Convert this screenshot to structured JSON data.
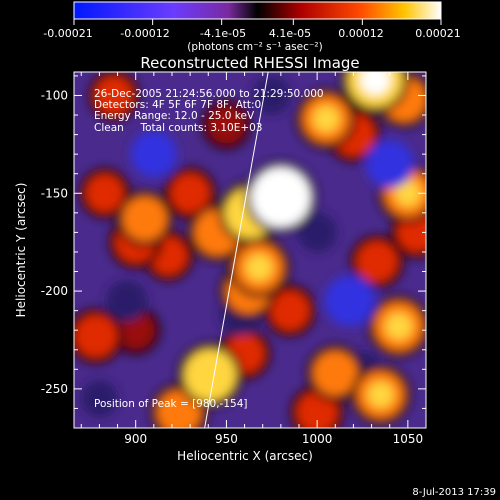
{
  "colorbar": {
    "ticks": [
      "-0.00021",
      "-0.00012",
      "-4.1e-05",
      "4.1e-05",
      "0.00012",
      "0.00021"
    ],
    "tick_values": [
      -0.00021,
      -0.00012,
      -4.1e-05,
      4.1e-05,
      0.00012,
      0.00021
    ],
    "range": [
      -0.00021,
      0.00021
    ],
    "unit_label": "(photons cm⁻² s⁻¹ asec⁻²)"
  },
  "chart_data": {
    "type": "heatmap",
    "title": "Reconstructed RHESSI Image",
    "xlabel": "Heliocentric X (arcsec)",
    "ylabel": "Heliocentric Y (arcsec)",
    "xlim": [
      866,
      1060
    ],
    "ylim": [
      -270,
      -88
    ],
    "x_ticks": [
      900,
      950,
      1000,
      1050
    ],
    "y_ticks": [
      -100,
      -150,
      -200,
      -250
    ],
    "colormap": "RHESSI blue-purple-red-yellow-white",
    "info_lines": [
      "26-Dec-2005 21:24:56.000 to 21:29:50.000",
      "Detectors: 4F 5F 6F 7F 8F, Att:0",
      "Energy Range: 12.0 - 25.0 keV",
      "Clean     Total counts: 3.10E+03"
    ],
    "peak_label": "Position of Peak = [980,-154]",
    "peak": [
      980,
      -154
    ],
    "limb_line": [
      [
        938,
        -270
      ],
      [
        973,
        -88
      ]
    ],
    "blobs": [
      {
        "x": 980,
        "y": -152,
        "value": 0.00021
      },
      {
        "x": 963,
        "y": -160,
        "value": 0.00015
      },
      {
        "x": 968,
        "y": -188,
        "value": 0.00014
      },
      {
        "x": 962,
        "y": -200,
        "value": 0.00011
      },
      {
        "x": 945,
        "y": -170,
        "value": 0.00012
      },
      {
        "x": 930,
        "y": -150,
        "value": 8e-05
      },
      {
        "x": 905,
        "y": -163,
        "value": 0.00011
      },
      {
        "x": 900,
        "y": -175,
        "value": 9e-05
      },
      {
        "x": 918,
        "y": -182,
        "value": 7e-05
      },
      {
        "x": 883,
        "y": -150,
        "value": 7e-05
      },
      {
        "x": 878,
        "y": -223,
        "value": 0.0001
      },
      {
        "x": 900,
        "y": -220,
        "value": 6e-05
      },
      {
        "x": 941,
        "y": -243,
        "value": 0.00016
      },
      {
        "x": 924,
        "y": -262,
        "value": 0.00011
      },
      {
        "x": 960,
        "y": -232,
        "value": 8e-05
      },
      {
        "x": 1032,
        "y": -92,
        "value": 0.00018
      },
      {
        "x": 1048,
        "y": -102,
        "value": 0.00011
      },
      {
        "x": 1005,
        "y": -112,
        "value": 0.00013
      },
      {
        "x": 1020,
        "y": -120,
        "value": 0.0001
      },
      {
        "x": 1050,
        "y": -150,
        "value": 0.00013
      },
      {
        "x": 1055,
        "y": -170,
        "value": 8e-05
      },
      {
        "x": 1033,
        "y": -185,
        "value": 9e-05
      },
      {
        "x": 1045,
        "y": -218,
        "value": 0.00014
      },
      {
        "x": 1010,
        "y": -242,
        "value": 0.00011
      },
      {
        "x": 1035,
        "y": -253,
        "value": 0.00013
      },
      {
        "x": 1000,
        "y": -262,
        "value": 9e-05
      },
      {
        "x": 985,
        "y": -210,
        "value": 8e-05
      },
      {
        "x": 888,
        "y": -100,
        "value": 7e-05
      },
      {
        "x": 950,
        "y": -115,
        "value": 6e-05
      },
      {
        "x": 910,
        "y": -130,
        "value": -0.00012
      },
      {
        "x": 1040,
        "y": -135,
        "value": -0.00013
      },
      {
        "x": 1018,
        "y": -205,
        "value": -0.00015
      },
      {
        "x": 958,
        "y": -212,
        "value": -0.0001
      },
      {
        "x": 895,
        "y": -205,
        "value": -9e-05
      },
      {
        "x": 1000,
        "y": -170,
        "value": -8e-05
      },
      {
        "x": 975,
        "y": -100,
        "value": -7e-05
      },
      {
        "x": 880,
        "y": -255,
        "value": -6e-05
      },
      {
        "x": 1025,
        "y": -240,
        "value": -6e-05
      }
    ]
  },
  "footer": {
    "date": "8-Jul-2013 17:39"
  }
}
